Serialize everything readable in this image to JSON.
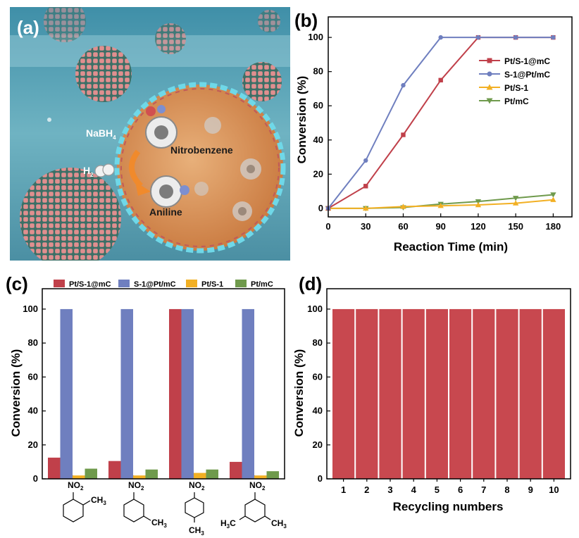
{
  "panel_a": {
    "label": "(a)",
    "labels": {
      "nabh": "NaBH",
      "nabh_sub": "4",
      "h2": "H",
      "h2_sub": "2",
      "nitrobenzene": "Nitrobenzene",
      "aniline": "Aniline"
    },
    "colors": {
      "water": "#5a9fb0",
      "sphere_pink": "#d98a8a",
      "core_orange": "#d9925a"
    }
  },
  "chart_data": [
    {
      "panel": "(b)",
      "type": "line",
      "x": [
        0,
        30,
        60,
        90,
        120,
        150,
        180
      ],
      "xticks": [
        "0",
        "30",
        "60",
        "90",
        "120",
        "150",
        "180"
      ],
      "series": [
        {
          "name": "Pt/S-1@mC",
          "color": "#c0404a",
          "marker": "square",
          "values": [
            0,
            13,
            43,
            75,
            100,
            100,
            100
          ]
        },
        {
          "name": "S-1@Pt/mC",
          "color": "#6f7fbf",
          "marker": "circle",
          "values": [
            0,
            28,
            72,
            100,
            100,
            100,
            100
          ]
        },
        {
          "name": "Pt/S-1",
          "color": "#f2b024",
          "marker": "triangle-up",
          "values": [
            0,
            0,
            1,
            1.5,
            2,
            3,
            5
          ]
        },
        {
          "name": "Pt/mC",
          "color": "#6f9a4c",
          "marker": "triangle-down",
          "values": [
            0,
            0,
            0.5,
            2.5,
            4,
            6,
            8
          ]
        }
      ],
      "xlabel": "Reaction Time (min)",
      "ylabel": "Conversion (%)",
      "xlim": [
        0,
        195
      ],
      "ylim": [
        -5,
        112
      ],
      "yticks": [
        0,
        20,
        40,
        60,
        80,
        100
      ],
      "legend_position": "top-right"
    },
    {
      "panel": "(c)",
      "type": "bar",
      "categories": [
        "o-nitrotoluene",
        "m-nitrotoluene",
        "p-nitrotoluene",
        "3,5-dimethylnitrobenzene"
      ],
      "series": [
        {
          "name": "Pt/S-1@mC",
          "color": "#c0404a",
          "values": [
            12.5,
            10.5,
            100,
            10
          ]
        },
        {
          "name": "S-1@Pt/mC",
          "color": "#6f7fbf",
          "values": [
            100,
            100,
            100,
            100
          ]
        },
        {
          "name": "Pt/S-1",
          "color": "#f2b024",
          "values": [
            2,
            2,
            3.5,
            2
          ]
        },
        {
          "name": "Pt/mC",
          "color": "#6f9a4c",
          "values": [
            6,
            5.5,
            5.5,
            4.5
          ]
        }
      ],
      "category_labels": {
        "no2": "NO",
        "no2_sub": "2",
        "ch3": "CH",
        "ch3_sub": "3",
        "h3c": "H",
        "h3c_sub": "3",
        "h3c_tail": "C"
      },
      "xlabel": "",
      "ylabel": "Conversion (%)",
      "ylim": [
        0,
        112
      ],
      "yticks": [
        0,
        20,
        40,
        60,
        80,
        100
      ],
      "legend_position": "top"
    },
    {
      "panel": "(d)",
      "type": "bar",
      "categories": [
        "1",
        "2",
        "3",
        "4",
        "5",
        "6",
        "7",
        "8",
        "9",
        "10"
      ],
      "values": [
        100,
        100,
        100,
        100,
        100,
        100,
        100,
        100,
        100,
        100
      ],
      "color": "#c8484f",
      "xlabel": "Recycling numbers",
      "ylabel": "Conversion (%)",
      "ylim": [
        0,
        112
      ],
      "yticks": [
        0,
        20,
        40,
        60,
        80,
        100
      ]
    }
  ]
}
